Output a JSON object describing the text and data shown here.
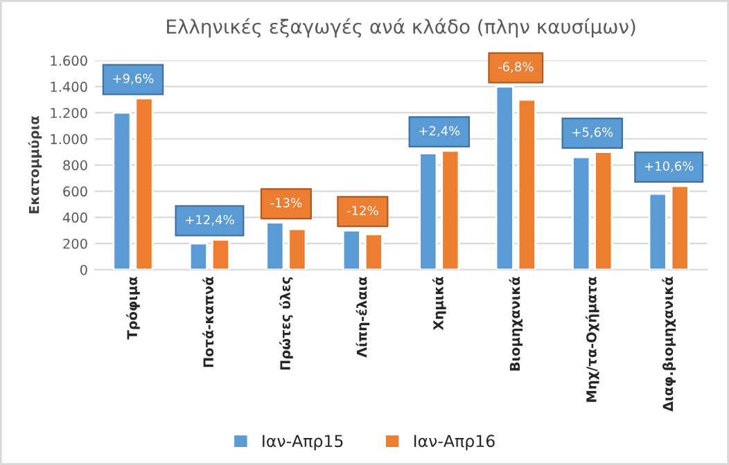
{
  "chart_data": {
    "type": "bar",
    "title": "Ελληνικές εξαγωγές ανά κλάδο (πλην καυσίμων)",
    "ylabel": "Εκατομμύρια",
    "categories": [
      "Τρόφιμα",
      "Ποτά-καπνά",
      "Πρώτες ύλες",
      "Λίπη-έλαια",
      "Χημικά",
      "Βιομηχανικά",
      "Μηχ/τα-Οχήματα",
      "Διαφ.βιομηχανικά"
    ],
    "series": [
      {
        "name": "Ιαν-Απρ15",
        "color": "#5b9bd5",
        "values": [
          1200,
          200,
          360,
          300,
          890,
          1400,
          860,
          580
        ]
      },
      {
        "name": "Ιαν-Απρ16",
        "color": "#ed7d31",
        "values": [
          1310,
          230,
          310,
          270,
          910,
          1300,
          900,
          640
        ]
      }
    ],
    "ylim": [
      0,
      1600
    ],
    "yticks": [
      0,
      {
        "value": 200,
        "label": "200"
      },
      {
        "value": 400,
        "label": "400"
      },
      {
        "value": 600,
        "label": "600"
      },
      {
        "value": 800,
        "label": "800"
      },
      {
        "value": 1000,
        "label": "1.000"
      },
      {
        "value": 1200,
        "label": "1.200"
      },
      {
        "value": 1400,
        "label": "1.400"
      },
      {
        "value": 1600,
        "label": "1.600"
      }
    ],
    "annotations": [
      "+9,6%",
      "+12,4%",
      "-13%",
      "-12%",
      "+2,4%",
      "-6,8%",
      "+5,6%",
      "+10,6%"
    ],
    "grid": "y",
    "legend": "bottom"
  }
}
